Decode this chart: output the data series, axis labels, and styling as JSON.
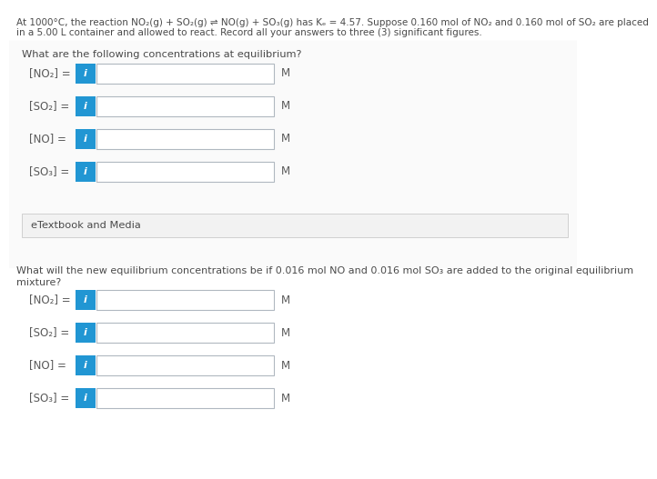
{
  "header_line1": "At 1000°C, the reaction NO₂(g) + SO₂(g) ⇌ NO(g) + SO₃(g) has Kₑ = 4.57. Suppose 0.160 mol of NO₂ and 0.160 mol of SO₂ are placed",
  "header_line2": "in a 5.00 L container and allowed to react. Record all your answers to three (3) significant figures.",
  "section1_title": "What are the following concentrations at equilibrium?",
  "section1_labels": [
    "[NO₂] =",
    "[SO₂] =",
    "[NO] =",
    "[SO₃] ="
  ],
  "section2_line1": "What will the new equilibrium concentrations be if 0.016 mol NO and 0.016 mol SO₃ are added to the original equilibrium",
  "section2_line2": "mixture?",
  "section2_labels": [
    "[NO₂] =",
    "[SO₂] =",
    "[NO] =",
    "[SO₃] ="
  ],
  "etextbook_label": "eTextbook and Media",
  "unit_label": "M",
  "bg_color": "#ffffff",
  "divider_color": "#d0d0d0",
  "box_color": "#2196d3",
  "input_border": "#b0b8c0",
  "input_bg": "#ffffff",
  "etextbook_bg": "#f2f2f2",
  "etextbook_border": "#d0d0d0",
  "text_color": "#4a4a4a",
  "label_color": "#5a5a5a",
  "fontsize_header": 7.5,
  "fontsize_section": 8.2,
  "fontsize_label": 8.5,
  "fontsize_unit": 8.5,
  "fontsize_etextbook": 8.2,
  "fontsize_i": 8.0
}
